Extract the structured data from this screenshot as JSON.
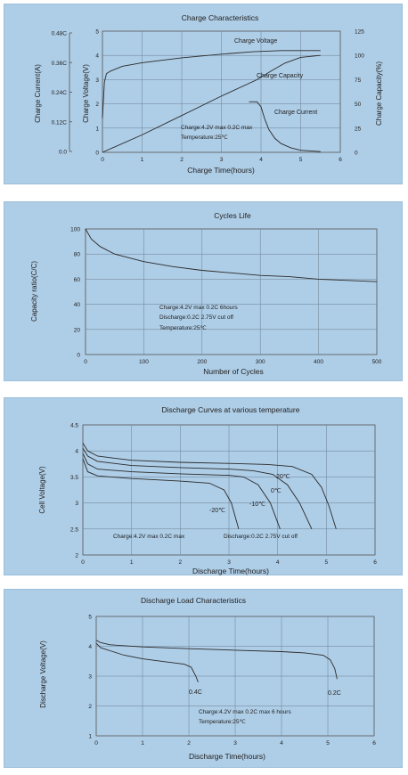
{
  "chart_data": [
    {
      "type": "line",
      "title": "Charge Characteristics",
      "xlabel": "Charge Time(hours)",
      "ylabel_current": "Charge Current(A)",
      "ylabel_voltage": "Charge Voltage(V)",
      "ylabel_capacity": "Charge Capacity(%)",
      "xlim": [
        0,
        6
      ],
      "x_ticks": [
        "0",
        "1",
        "2",
        "3",
        "4",
        "5",
        "6"
      ],
      "ylim_voltage": [
        0,
        5
      ],
      "voltage_ticks": [
        "0",
        "1",
        "2",
        "3",
        "4",
        "5"
      ],
      "ylim_current": [
        0,
        0.48
      ],
      "current_ticks": [
        "0.0",
        "0.12C",
        "0.24C",
        "0.36C",
        "0.48C"
      ],
      "ylim_capacity": [
        0,
        125
      ],
      "capacity_ticks": [
        "0",
        "25",
        "50",
        "75",
        "100",
        "125"
      ],
      "grid": true,
      "annotations": [
        "Charge:4.2V max 0.2C max",
        "Temperature:25℃"
      ],
      "series": [
        {
          "name": "Charge Voltage",
          "axis": "voltage",
          "points": [
            [
              0,
              1.4
            ],
            [
              0.05,
              2.9
            ],
            [
              0.1,
              3.25
            ],
            [
              0.2,
              3.35
            ],
            [
              0.5,
              3.55
            ],
            [
              1,
              3.7
            ],
            [
              2,
              3.9
            ],
            [
              3,
              4.05
            ],
            [
              3.8,
              4.15
            ],
            [
              4.5,
              4.2
            ],
            [
              5,
              4.2
            ],
            [
              5.5,
              4.2
            ]
          ]
        },
        {
          "name": "Charge Capacity",
          "axis": "capacity",
          "points": [
            [
              0,
              0
            ],
            [
              1,
              18
            ],
            [
              2,
              38
            ],
            [
              3,
              58
            ],
            [
              3.9,
              75
            ],
            [
              4.3,
              85
            ],
            [
              4.6,
              92
            ],
            [
              5,
              98
            ],
            [
              5.5,
              100
            ]
          ]
        },
        {
          "name": "Charge Current",
          "axis": "current",
          "points": [
            [
              3.7,
              0.2
            ],
            [
              3.9,
              0.2
            ],
            [
              4.0,
              0.18
            ],
            [
              4.1,
              0.13
            ],
            [
              4.2,
              0.09
            ],
            [
              4.35,
              0.055
            ],
            [
              4.5,
              0.035
            ],
            [
              4.75,
              0.018
            ],
            [
              5,
              0.008
            ],
            [
              5.5,
              0.003
            ]
          ]
        }
      ]
    },
    {
      "type": "line",
      "title": "Cycles Life",
      "xlabel": "Number of Cycles",
      "ylabel": "Capacity ratio(C/C)",
      "xlim": [
        0,
        500
      ],
      "x_ticks": [
        "0",
        "100",
        "200",
        "300",
        "400",
        "500"
      ],
      "ylim": [
        0,
        100
      ],
      "y_ticks": [
        "0",
        "20",
        "40",
        "60",
        "80",
        "100"
      ],
      "grid": true,
      "annotations": [
        "Charge:4.2V max 0.2C 6hours",
        "Discharge:0.2C 2.75V cut off",
        "Temperature:25℃"
      ],
      "series": [
        {
          "points": [
            [
              0,
              100
            ],
            [
              10,
              92
            ],
            [
              25,
              86
            ],
            [
              50,
              80
            ],
            [
              100,
              74
            ],
            [
              150,
              70
            ],
            [
              200,
              67
            ],
            [
              250,
              65
            ],
            [
              300,
              63
            ],
            [
              350,
              62
            ],
            [
              400,
              60
            ],
            [
              450,
              59
            ],
            [
              500,
              58
            ]
          ]
        }
      ]
    },
    {
      "type": "line",
      "title": "Discharge Curves at various temperature",
      "xlabel": "Discharge Time(hours)",
      "ylabel": "Cell Voltage(V)",
      "xlim": [
        0,
        6
      ],
      "x_ticks": [
        "0",
        "1",
        "2",
        "3",
        "4",
        "5",
        "6"
      ],
      "ylim": [
        2,
        4.5
      ],
      "y_ticks": [
        "2",
        "2.5",
        "3",
        "3.5",
        "4",
        "4.5"
      ],
      "grid": true,
      "annotations": [
        "Charge:4.2V max 0.2C max",
        "Discharge:0.2C 2.75V cut off"
      ],
      "series": [
        {
          "name": "20℃",
          "points": [
            [
              0,
              4.15
            ],
            [
              0.1,
              4.0
            ],
            [
              0.3,
              3.9
            ],
            [
              1,
              3.82
            ],
            [
              2,
              3.78
            ],
            [
              3,
              3.76
            ],
            [
              3.8,
              3.74
            ],
            [
              4.3,
              3.7
            ],
            [
              4.7,
              3.55
            ],
            [
              4.9,
              3.3
            ],
            [
              5.05,
              2.95
            ],
            [
              5.2,
              2.5
            ]
          ]
        },
        {
          "name": "0℃",
          "points": [
            [
              0,
              4.05
            ],
            [
              0.1,
              3.9
            ],
            [
              0.3,
              3.8
            ],
            [
              1,
              3.72
            ],
            [
              2,
              3.68
            ],
            [
              3,
              3.65
            ],
            [
              3.5,
              3.62
            ],
            [
              3.9,
              3.55
            ],
            [
              4.2,
              3.35
            ],
            [
              4.45,
              3.0
            ],
            [
              4.7,
              2.5
            ]
          ]
        },
        {
          "name": "-10℃",
          "points": [
            [
              0,
              3.95
            ],
            [
              0.1,
              3.75
            ],
            [
              0.3,
              3.65
            ],
            [
              1,
              3.6
            ],
            [
              2,
              3.56
            ],
            [
              3,
              3.53
            ],
            [
              3.3,
              3.5
            ],
            [
              3.6,
              3.35
            ],
            [
              3.85,
              3.0
            ],
            [
              4.05,
              2.5
            ]
          ]
        },
        {
          "name": "-20℃",
          "points": [
            [
              0,
              3.85
            ],
            [
              0.1,
              3.6
            ],
            [
              0.3,
              3.52
            ],
            [
              1,
              3.47
            ],
            [
              2,
              3.42
            ],
            [
              2.6,
              3.38
            ],
            [
              2.9,
              3.25
            ],
            [
              3.05,
              3.0
            ],
            [
              3.2,
              2.5
            ]
          ]
        }
      ]
    },
    {
      "type": "line",
      "title": "Discharge Load Characteristics",
      "xlabel": "Discharge Time(hours)",
      "ylabel": "Discharge Voltage(V)",
      "xlim": [
        0,
        6
      ],
      "x_ticks": [
        "0",
        "1",
        "2",
        "3",
        "4",
        "5",
        "6"
      ],
      "ylim": [
        1,
        5
      ],
      "y_ticks": [
        "1",
        "2",
        "3",
        "4",
        "5"
      ],
      "grid": true,
      "annotations": [
        "Charge:4.2V max 0.2C max 6 hours",
        "Temperature:25℃"
      ],
      "series": [
        {
          "name": "0.2C",
          "points": [
            [
              0,
              4.2
            ],
            [
              0.1,
              4.12
            ],
            [
              0.3,
              4.05
            ],
            [
              1,
              3.98
            ],
            [
              2,
              3.92
            ],
            [
              3,
              3.87
            ],
            [
              4,
              3.82
            ],
            [
              4.5,
              3.78
            ],
            [
              4.9,
              3.7
            ],
            [
              5.05,
              3.55
            ],
            [
              5.15,
              3.25
            ],
            [
              5.2,
              2.9
            ]
          ]
        },
        {
          "name": "0.4C",
          "points": [
            [
              0,
              4.1
            ],
            [
              0.1,
              3.95
            ],
            [
              0.3,
              3.85
            ],
            [
              0.6,
              3.7
            ],
            [
              1,
              3.58
            ],
            [
              1.5,
              3.48
            ],
            [
              1.9,
              3.4
            ],
            [
              2.05,
              3.3
            ],
            [
              2.15,
              3.0
            ],
            [
              2.2,
              2.8
            ]
          ]
        }
      ]
    }
  ]
}
